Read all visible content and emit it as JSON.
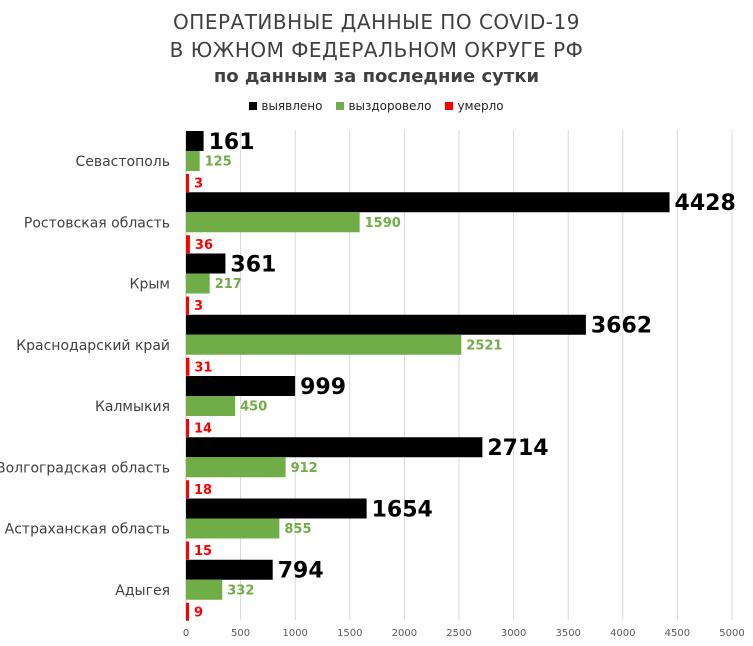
{
  "chart_data": {
    "type": "bar",
    "orientation": "horizontal",
    "title_lines": [
      "ОПЕРАТИВНЫЕ ДАННЫЕ ПО COVID-19",
      "В ЮЖНОМ ФЕДЕРАЛЬНОМ ОКРУГЕ РФ"
    ],
    "subtitle": "по данным за последние сутки",
    "categories": [
      "Севастополь",
      "Ростовская область",
      "Крым",
      "Краснодарский край",
      "Калмыкия",
      "Волгоградская область",
      "Астраханская область",
      "Адыгея"
    ],
    "series": [
      {
        "name": "выявлено",
        "color": "#000000",
        "values": [
          161,
          4428,
          361,
          3662,
          999,
          2714,
          1654,
          794
        ]
      },
      {
        "name": "выздоровело",
        "color": "#70ad47",
        "values": [
          125,
          1590,
          217,
          2521,
          450,
          912,
          855,
          332
        ]
      },
      {
        "name": "умерло",
        "color": "#ff0000",
        "values": [
          3,
          36,
          3,
          31,
          14,
          18,
          15,
          9
        ]
      }
    ],
    "xlim": [
      0,
      5000
    ],
    "xticks": [
      0,
      500,
      1000,
      1500,
      2000,
      2500,
      3000,
      3500,
      4000,
      4500,
      5000
    ],
    "grid": true,
    "legend_position": "top"
  }
}
